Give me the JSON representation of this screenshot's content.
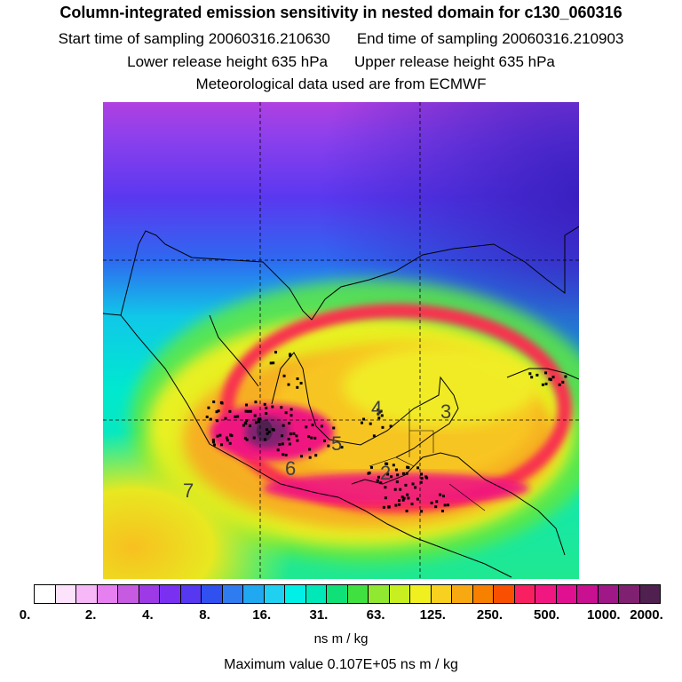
{
  "header": {
    "title": "Column-integrated emission sensitivity in nested domain for c130_060316",
    "start_label": "Start time of sampling 20060316.210630",
    "end_label": "End time of sampling 20060316.210903",
    "lower_label": "Lower release height  635 hPa",
    "upper_label": "Upper release height  635 hPa",
    "met_label": "Meteorological data used are from ECMWF"
  },
  "map": {
    "region_labels": [
      "2",
      "3",
      "4",
      "5",
      "6",
      "7"
    ],
    "colors": {
      "ocean_far": "#2020d8",
      "ocean_mid": "#00c8e0",
      "ring": "#ffd000",
      "core": "#ff1493",
      "peak": "#502050",
      "coast": "#000000"
    }
  },
  "colorbar": {
    "colors": [
      "#ffffff",
      "#fde2fb",
      "#f6b8f6",
      "#e680f0",
      "#c65ae0",
      "#9d3ae6",
      "#7a30f0",
      "#5538f0",
      "#3050f0",
      "#2f7cf0",
      "#20a8f0",
      "#20d0f0",
      "#00f0e8",
      "#00e8b8",
      "#10e078",
      "#40e040",
      "#90e830",
      "#c8f020",
      "#f0f020",
      "#f8d020",
      "#f8a810",
      "#f88000",
      "#f85000",
      "#f82060",
      "#f01880",
      "#e01090",
      "#c81090",
      "#a01888",
      "#802070",
      "#502050"
    ],
    "tick_labels": [
      "0.",
      "2.",
      "4.",
      "8.",
      "16.",
      "31.",
      "63.",
      "125.",
      "250.",
      "500.",
      "1000.",
      "2000."
    ],
    "units": "ns m / kg"
  },
  "footer": {
    "max_value": "Maximum value  0.107E+05 ns m / kg"
  }
}
